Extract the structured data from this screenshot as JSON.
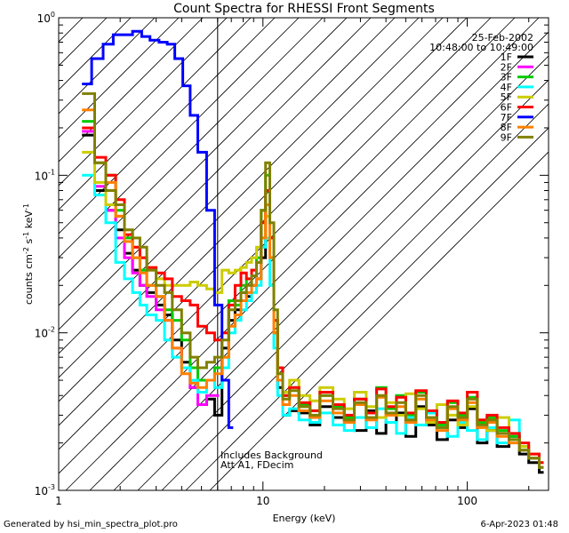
{
  "chart_data": {
    "type": "line",
    "title": "Count Spectra for RHESSI Front Segments",
    "xlabel": "Energy (keV)",
    "ylabel_parts": [
      "counts cm",
      "-2",
      " s",
      "-1",
      " keV",
      "-1"
    ],
    "xscale": "log",
    "yscale": "log",
    "xlim": [
      1,
      250
    ],
    "ylim": [
      0.001,
      1.0
    ],
    "x_ticks": [
      {
        "value": 1,
        "label": "1"
      },
      {
        "value": 10,
        "label": "10"
      },
      {
        "value": 100,
        "label": "100"
      }
    ],
    "y_ticks": [
      {
        "value": 0.001,
        "base": "10",
        "exp": "-3"
      },
      {
        "value": 0.01,
        "base": "10",
        "exp": "-2"
      },
      {
        "value": 0.1,
        "base": "10",
        "exp": "-1"
      },
      {
        "value": 1,
        "base": "10",
        "exp": "0"
      }
    ],
    "date": "25-Feb-2002",
    "time_range": "10:48:00 to 10:49:00",
    "shaded_region": {
      "x_from": 1,
      "x_to": 6,
      "pattern": "diagonal hatch"
    },
    "annotations": [
      "Includes Background",
      "Att A1, FDecim"
    ],
    "series": [
      {
        "name": "1F",
        "color": "#000000",
        "x": [
          1.3,
          1.5,
          1.7,
          1.9,
          2.1,
          2.3,
          2.5,
          2.7,
          3.0,
          3.3,
          3.6,
          4.0,
          4.4,
          4.8,
          5.3,
          5.8,
          6.3,
          6.8,
          7.3,
          7.8,
          8.3,
          8.8,
          9.3,
          9.8,
          10.3,
          10.8,
          11.3,
          11.8,
          12.5,
          13.5,
          15,
          17,
          19,
          22,
          25,
          28,
          32,
          36,
          40,
          45,
          50,
          56,
          63,
          71,
          80,
          90,
          100,
          112,
          125,
          140,
          160,
          180,
          200,
          225
        ],
        "y": [
          0.18,
          0.08,
          0.06,
          0.045,
          0.032,
          0.025,
          0.02,
          0.018,
          0.015,
          0.013,
          0.009,
          0.0065,
          0.0045,
          0.0035,
          0.0038,
          0.003,
          0.008,
          0.012,
          0.014,
          0.018,
          0.017,
          0.02,
          0.022,
          0.03,
          0.065,
          0.03,
          0.01,
          0.0045,
          0.003,
          0.0032,
          0.0031,
          0.0026,
          0.0034,
          0.0029,
          0.0028,
          0.0024,
          0.0032,
          0.0023,
          0.0027,
          0.0031,
          0.0022,
          0.0034,
          0.0026,
          0.0021,
          0.0028,
          0.0025,
          0.0033,
          0.002,
          0.0024,
          0.0019,
          0.0022,
          0.0017,
          0.0015,
          0.0013
        ]
      },
      {
        "name": "2F",
        "color": "#ff00ff",
        "x": [
          1.3,
          1.5,
          1.7,
          1.9,
          2.1,
          2.3,
          2.5,
          2.7,
          3.0,
          3.3,
          3.6,
          4.0,
          4.4,
          4.8,
          5.3,
          5.8
        ],
        "y": [
          0.19,
          0.085,
          0.06,
          0.04,
          0.03,
          0.024,
          0.02,
          0.017,
          0.014,
          0.012,
          0.008,
          0.006,
          0.0045,
          0.0035,
          0.004,
          0.004
        ]
      },
      {
        "name": "3F",
        "color": "#00cc00",
        "x": [
          1.3,
          1.5,
          1.7,
          1.9,
          2.1,
          2.3,
          2.5,
          2.7,
          3.0,
          3.3,
          3.6,
          4.0,
          4.4,
          4.8,
          5.3,
          5.8,
          6.3,
          6.8,
          7.3,
          7.8,
          8.3,
          8.8,
          9.3,
          9.8,
          10.3,
          10.8,
          11.3,
          11.8,
          12.5,
          13.5,
          15,
          17,
          19,
          22,
          25,
          28,
          32,
          36,
          40,
          45,
          50,
          56,
          63,
          71,
          80,
          90,
          100,
          112,
          125,
          140,
          160,
          180,
          200,
          225
        ],
        "y": [
          0.22,
          0.12,
          0.1,
          0.06,
          0.04,
          0.03,
          0.025,
          0.02,
          0.017,
          0.014,
          0.012,
          0.009,
          0.006,
          0.005,
          0.005,
          0.006,
          0.007,
          0.016,
          0.015,
          0.02,
          0.022,
          0.025,
          0.03,
          0.06,
          0.1,
          0.04,
          0.012,
          0.005,
          0.004,
          0.0045,
          0.0035,
          0.0032,
          0.004,
          0.0034,
          0.0029,
          0.0038,
          0.0031,
          0.0045,
          0.0033,
          0.004,
          0.003,
          0.0042,
          0.0031,
          0.0026,
          0.0036,
          0.003,
          0.0039,
          0.0027,
          0.0029,
          0.0024,
          0.0022,
          0.0019,
          0.0016,
          0.0014
        ]
      },
      {
        "name": "4F",
        "color": "#00ffff",
        "x": [
          1.3,
          1.5,
          1.7,
          1.9,
          2.1,
          2.3,
          2.5,
          2.7,
          3.0,
          3.3,
          3.6,
          4.0,
          4.4,
          4.8,
          5.3,
          5.8,
          6.3,
          6.8,
          7.3,
          7.8,
          8.3,
          8.8,
          9.3,
          9.8,
          10.3,
          10.8,
          11.3,
          11.8,
          12.5,
          13.5,
          15,
          17,
          19,
          22,
          25,
          28,
          32,
          36,
          40,
          45,
          50,
          56,
          63,
          71,
          80,
          90,
          100,
          112,
          125,
          140,
          160,
          180,
          200,
          225
        ],
        "y": [
          0.1,
          0.075,
          0.05,
          0.028,
          0.022,
          0.018,
          0.015,
          0.013,
          0.012,
          0.009,
          0.007,
          0.006,
          0.005,
          0.0042,
          0.005,
          0.0045,
          0.006,
          0.01,
          0.012,
          0.014,
          0.016,
          0.018,
          0.02,
          0.035,
          0.04,
          0.02,
          0.008,
          0.004,
          0.003,
          0.0033,
          0.0028,
          0.0027,
          0.0031,
          0.0026,
          0.0024,
          0.0029,
          0.0025,
          0.0033,
          0.0027,
          0.0023,
          0.0029,
          0.0026,
          0.0031,
          0.0025,
          0.0022,
          0.0027,
          0.0024,
          0.0021,
          0.0025,
          0.002,
          0.0028,
          0.0018,
          0.0016,
          0.0014
        ]
      },
      {
        "name": "5F",
        "color": "#cccc00",
        "x": [
          1.3,
          1.5,
          1.7,
          1.9,
          2.1,
          2.3,
          2.5,
          2.7,
          3.0,
          3.3,
          3.6,
          4.0,
          4.4,
          4.8,
          5.3,
          5.8,
          6.3,
          6.8,
          7.3,
          7.8,
          8.3,
          8.8,
          9.3,
          9.8,
          10.3,
          10.8,
          11.3,
          11.8,
          12.5,
          13.5,
          15,
          17,
          19,
          22,
          25,
          28,
          32,
          36,
          40,
          45,
          50,
          56,
          63,
          71,
          80,
          90,
          100,
          112,
          125,
          140,
          160,
          180,
          200,
          225
        ],
        "y": [
          0.14,
          0.09,
          0.065,
          0.055,
          0.045,
          0.035,
          0.03,
          0.025,
          0.022,
          0.02,
          0.02,
          0.02,
          0.021,
          0.02,
          0.019,
          0.018,
          0.025,
          0.024,
          0.025,
          0.026,
          0.028,
          0.03,
          0.035,
          0.04,
          0.055,
          0.03,
          0.012,
          0.0055,
          0.0042,
          0.005,
          0.004,
          0.0037,
          0.0045,
          0.0038,
          0.0033,
          0.0042,
          0.0034,
          0.0029,
          0.0036,
          0.003,
          0.0041,
          0.0033,
          0.0027,
          0.0035,
          0.003,
          0.0026,
          0.0034,
          0.0028,
          0.0024,
          0.0029,
          0.0021,
          0.0019,
          0.0017,
          0.0015
        ]
      },
      {
        "name": "6F",
        "color": "#ff0000",
        "x": [
          1.3,
          1.5,
          1.7,
          1.9,
          2.1,
          2.3,
          2.5,
          2.7,
          3.0,
          3.3,
          3.6,
          4.0,
          4.4,
          4.8,
          5.3,
          5.8,
          6.3,
          6.8,
          7.3,
          7.8,
          8.3,
          8.8,
          9.3,
          9.8,
          10.3,
          10.8,
          11.3,
          11.8,
          12.5,
          13.5,
          15,
          17,
          19,
          22,
          25,
          28,
          32,
          36,
          40,
          45,
          50,
          56,
          63,
          71,
          80,
          90,
          100,
          112,
          125,
          140,
          160,
          180,
          200,
          225
        ],
        "y": [
          0.2,
          0.13,
          0.1,
          0.07,
          0.042,
          0.035,
          0.03,
          0.026,
          0.024,
          0.022,
          0.017,
          0.016,
          0.015,
          0.011,
          0.01,
          0.009,
          0.01,
          0.015,
          0.02,
          0.024,
          0.022,
          0.025,
          0.028,
          0.05,
          0.08,
          0.04,
          0.012,
          0.006,
          0.004,
          0.0045,
          0.0036,
          0.0032,
          0.0042,
          0.0035,
          0.003,
          0.0038,
          0.0031,
          0.0044,
          0.0034,
          0.0039,
          0.0031,
          0.0043,
          0.0032,
          0.0027,
          0.0037,
          0.0031,
          0.0042,
          0.0028,
          0.003,
          0.0025,
          0.0023,
          0.002,
          0.0017,
          0.0015
        ]
      },
      {
        "name": "7F",
        "color": "#0000ff",
        "x": [
          1.3,
          1.45,
          1.65,
          1.85,
          2.05,
          2.3,
          2.55,
          2.8,
          3.1,
          3.4,
          3.7,
          4.05,
          4.4,
          4.8,
          5.3,
          5.8,
          6.3,
          6.8
        ],
        "y": [
          0.38,
          0.55,
          0.68,
          0.78,
          0.78,
          0.82,
          0.76,
          0.72,
          0.7,
          0.68,
          0.55,
          0.37,
          0.24,
          0.14,
          0.06,
          0.015,
          0.005,
          0.0025
        ]
      },
      {
        "name": "8F",
        "color": "#ff8000",
        "x": [
          1.3,
          1.5,
          1.7,
          1.9,
          2.1,
          2.3,
          2.5,
          2.7,
          3.0,
          3.3,
          3.6,
          4.0,
          4.4,
          4.8,
          5.3,
          5.8,
          6.3,
          6.8,
          7.3,
          7.8,
          8.3,
          8.8,
          9.3,
          9.8,
          10.3,
          10.8,
          11.3,
          11.8,
          12.5,
          13.5,
          15,
          17,
          19,
          22,
          25,
          28,
          32,
          36,
          40,
          45,
          50,
          56,
          63,
          71,
          80,
          90,
          100,
          112,
          125,
          140,
          160,
          180,
          200,
          225
        ],
        "y": [
          0.26,
          0.12,
          0.09,
          0.055,
          0.038,
          0.03,
          0.024,
          0.02,
          0.017,
          0.012,
          0.008,
          0.0055,
          0.0048,
          0.0045,
          0.005,
          0.0055,
          0.007,
          0.011,
          0.013,
          0.016,
          0.018,
          0.02,
          0.022,
          0.04,
          0.065,
          0.03,
          0.01,
          0.005,
          0.0035,
          0.004,
          0.0032,
          0.0029,
          0.0037,
          0.0031,
          0.0027,
          0.0035,
          0.0028,
          0.0039,
          0.003,
          0.0034,
          0.0027,
          0.0038,
          0.0028,
          0.0024,
          0.0033,
          0.0028,
          0.0036,
          0.0025,
          0.0027,
          0.0022,
          0.002,
          0.0018,
          0.0016,
          0.0014
        ]
      },
      {
        "name": "9F",
        "color": "#808000",
        "x": [
          1.3,
          1.5,
          1.7,
          1.9,
          2.1,
          2.3,
          2.5,
          2.7,
          3.0,
          3.3,
          3.6,
          4.0,
          4.4,
          4.8,
          5.3,
          5.8,
          6.3,
          6.8,
          7.3,
          7.8,
          8.3,
          8.8,
          9.3,
          9.8,
          10.3,
          10.8,
          11.3,
          11.8,
          12.5,
          13.5,
          15,
          17,
          19,
          22,
          25,
          28,
          32,
          36,
          40,
          45,
          50,
          56,
          63,
          71,
          80,
          90,
          100,
          112,
          125,
          140,
          160,
          180,
          200,
          225
        ],
        "y": [
          0.33,
          0.12,
          0.08,
          0.065,
          0.045,
          0.04,
          0.035,
          0.025,
          0.02,
          0.018,
          0.014,
          0.01,
          0.007,
          0.006,
          0.0065,
          0.007,
          0.009,
          0.014,
          0.016,
          0.018,
          0.02,
          0.023,
          0.028,
          0.06,
          0.12,
          0.05,
          0.014,
          0.0055,
          0.0038,
          0.0043,
          0.0034,
          0.003,
          0.004,
          0.0033,
          0.0028,
          0.0036,
          0.0029,
          0.004,
          0.0031,
          0.0036,
          0.0028,
          0.004,
          0.0029,
          0.0025,
          0.0034,
          0.0029,
          0.0038,
          0.0026,
          0.0028,
          0.0023,
          0.0021,
          0.0018,
          0.0016,
          0.0014
        ]
      }
    ]
  },
  "footer": {
    "generated_by": "Generated by hsi_min_spectra_plot.pro",
    "timestamp": "6-Apr-2023 01:48"
  }
}
